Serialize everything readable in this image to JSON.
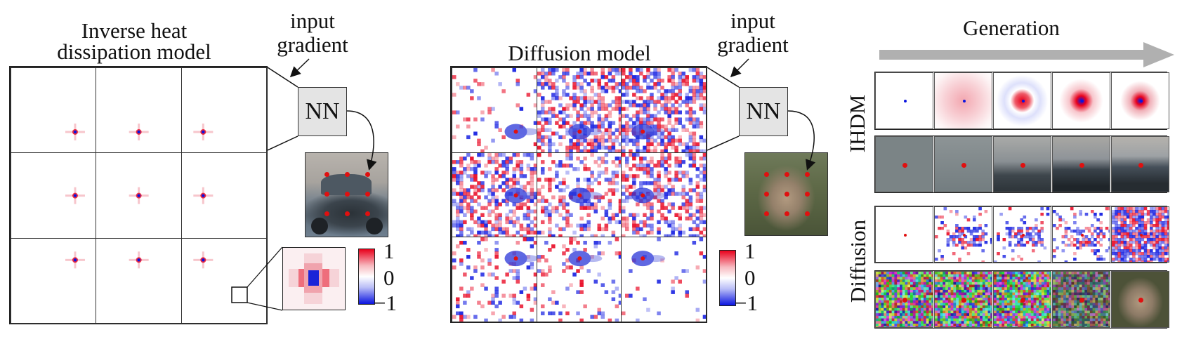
{
  "left_panel": {
    "title_line1": "Inverse heat",
    "title_line2": "dissipation model",
    "annotation_line1": "input",
    "annotation_line2": "gradient",
    "nn_label": "NN",
    "cells_pattern": "localized-plus-spot",
    "colorbar_max": "1",
    "colorbar_mid": "0",
    "colorbar_min": "−1"
  },
  "middle_panel": {
    "title": "Diffusion model",
    "annotation_line1": "input",
    "annotation_line2": "gradient",
    "nn_label": "NN",
    "cells_pattern": "noisy-red-blue",
    "colorbar_max": "1",
    "colorbar_mid": "0",
    "colorbar_min": "−1"
  },
  "right_panel": {
    "title": "Generation",
    "row_label_top": "IHDM",
    "row_label_bottom": "Diffusion",
    "arrow_color": "#b0b0b0"
  },
  "colors": {
    "positive": "#e8001c",
    "negative": "#0a14e0",
    "marker": "#e01010",
    "nn_box": "#e4e4e4"
  }
}
